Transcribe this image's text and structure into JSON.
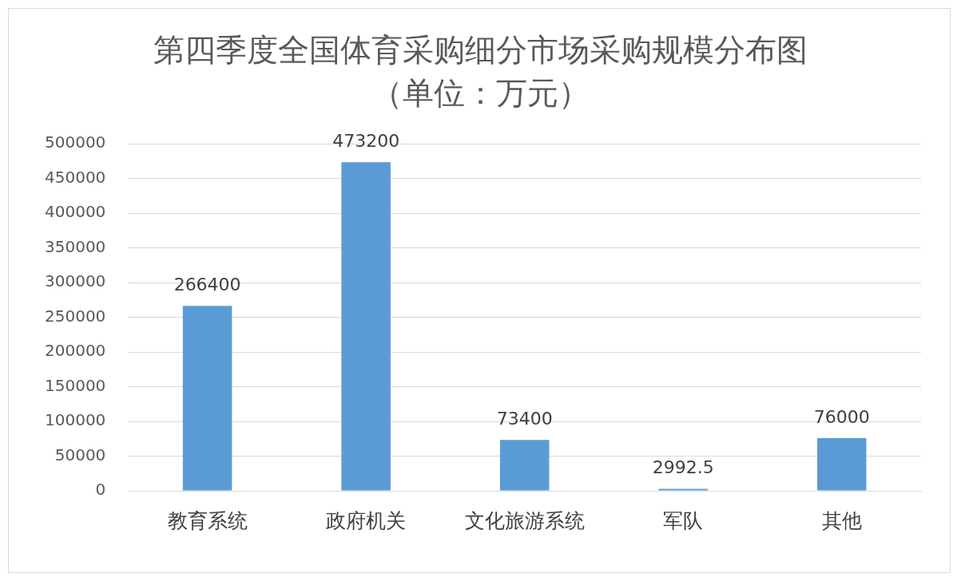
{
  "chart_data": {
    "type": "bar",
    "title": "第四季度全国体育采购细分市场采购规模分布图（单位：万元）",
    "categories": [
      "教育系统",
      "政府机关",
      "文化旅游系统",
      "军队",
      "其他"
    ],
    "values": [
      266400,
      473200,
      73400,
      2992.5,
      76000
    ],
    "color": "#5b9bd5",
    "ylim": [
      0,
      500000
    ],
    "yticks": [
      0,
      50000,
      100000,
      150000,
      200000,
      250000,
      300000,
      350000,
      400000,
      450000,
      500000
    ],
    "grid": "y",
    "data_labels": true
  }
}
